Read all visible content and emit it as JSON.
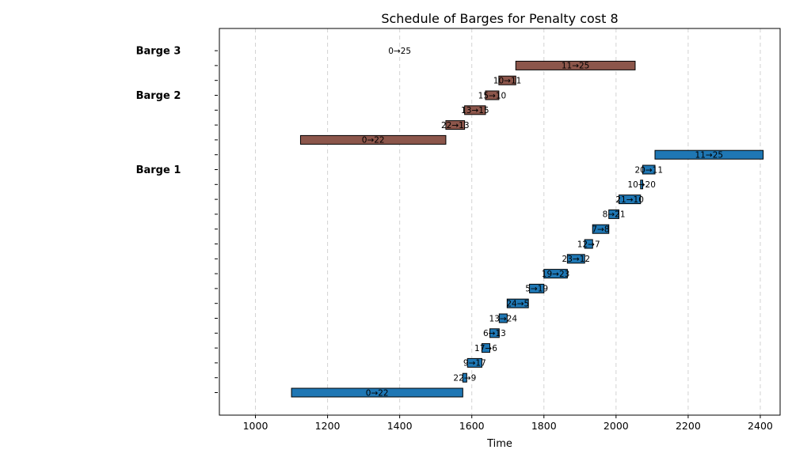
{
  "chart_data": {
    "type": "gantt",
    "title": "Schedule of Barges for Penalty cost 8",
    "xlabel": "Time",
    "xlim": [
      900,
      2455
    ],
    "xticks": [
      1000,
      1200,
      1400,
      1600,
      1800,
      2000,
      2200,
      2400
    ],
    "grid": "vertical dashed",
    "colors": {
      "barge_1": "#1f77b4",
      "barge_2": "#8c564b"
    },
    "groups": [
      {
        "label": "Barge 1",
        "color_key": "barge_1",
        "label_row": 15
      },
      {
        "label": "Barge 2",
        "color_key": "barge_2",
        "label_row": 20
      },
      {
        "label": "Barge 3",
        "color_key": "barge_2",
        "label_row": 23
      }
    ],
    "row_count": 24,
    "bars": [
      {
        "row": 0,
        "start": 1100,
        "end": 1575,
        "label": "0→22",
        "color_key": "barge_1"
      },
      {
        "row": 1,
        "start": 1575,
        "end": 1586,
        "label": "22→9",
        "color_key": "barge_1"
      },
      {
        "row": 2,
        "start": 1588,
        "end": 1628,
        "label": "9→17",
        "color_key": "barge_1"
      },
      {
        "row": 3,
        "start": 1628,
        "end": 1650,
        "label": "17→6",
        "color_key": "barge_1"
      },
      {
        "row": 4,
        "start": 1650,
        "end": 1676,
        "label": "6→13",
        "color_key": "barge_1"
      },
      {
        "row": 5,
        "start": 1676,
        "end": 1698,
        "label": "13→24",
        "color_key": "barge_1"
      },
      {
        "row": 6,
        "start": 1698,
        "end": 1757,
        "label": "24→5",
        "color_key": "barge_1"
      },
      {
        "row": 7,
        "start": 1760,
        "end": 1800,
        "label": "5→19",
        "color_key": "barge_1"
      },
      {
        "row": 8,
        "start": 1800,
        "end": 1865,
        "label": "19→23",
        "color_key": "barge_1"
      },
      {
        "row": 9,
        "start": 1865,
        "end": 1913,
        "label": "23→12",
        "color_key": "barge_1"
      },
      {
        "row": 10,
        "start": 1913,
        "end": 1935,
        "label": "12→7",
        "color_key": "barge_1"
      },
      {
        "row": 11,
        "start": 1935,
        "end": 1980,
        "label": "7→8",
        "color_key": "barge_1"
      },
      {
        "row": 12,
        "start": 1980,
        "end": 2008,
        "label": "8→21",
        "color_key": "barge_1"
      },
      {
        "row": 13,
        "start": 2008,
        "end": 2068,
        "label": "21→10",
        "color_key": "barge_1"
      },
      {
        "row": 14,
        "start": 2068,
        "end": 2074,
        "label": "10→20",
        "color_key": "barge_1"
      },
      {
        "row": 15,
        "start": 2074,
        "end": 2108,
        "label": "20→11",
        "color_key": "barge_1"
      },
      {
        "row": 16,
        "start": 2108,
        "end": 2408,
        "label": "11→25",
        "color_key": "barge_1"
      },
      {
        "row": 17,
        "start": 1125,
        "end": 1528,
        "label": "0→22",
        "color_key": "barge_2"
      },
      {
        "row": 18,
        "start": 1528,
        "end": 1580,
        "label": "22→13",
        "color_key": "barge_2"
      },
      {
        "row": 19,
        "start": 1580,
        "end": 1638,
        "label": "13→15",
        "color_key": "barge_2"
      },
      {
        "row": 20,
        "start": 1638,
        "end": 1675,
        "label": "15→10",
        "color_key": "barge_2"
      },
      {
        "row": 21,
        "start": 1675,
        "end": 1722,
        "label": "10→11",
        "color_key": "barge_2"
      },
      {
        "row": 22,
        "start": 1722,
        "end": 2053,
        "label": "11→25",
        "color_key": "barge_2"
      },
      {
        "row": 23,
        "start": 1400,
        "end": 1400,
        "label": "0→25",
        "color_key": "barge_2"
      }
    ]
  }
}
